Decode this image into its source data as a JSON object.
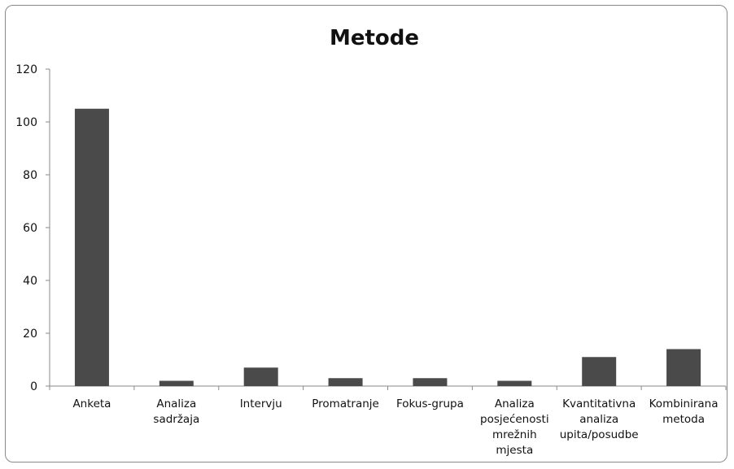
{
  "chart_data": {
    "type": "bar",
    "title": "Metode",
    "xlabel": "",
    "ylabel": "",
    "ylim": [
      0,
      120
    ],
    "yticks": [
      0,
      20,
      40,
      60,
      80,
      100,
      120
    ],
    "grid": false,
    "legend": "none",
    "bar_color": "#4a4a4a",
    "categories": [
      "Anketa",
      "Analiza sadržaja",
      "Intervju",
      "Promatranje",
      "Fokus-grupa",
      "Analiza posjećenosti mrežnih mjesta",
      "Kvantitativna analiza upita/posudbe",
      "Kombinirana metoda"
    ],
    "category_label_lines": [
      [
        "Anketa"
      ],
      [
        "Analiza",
        "sadržaja"
      ],
      [
        "Intervju"
      ],
      [
        "Promatranje"
      ],
      [
        "Fokus-grupa"
      ],
      [
        "Analiza",
        "posjećenosti",
        "mrežnih",
        "mjesta"
      ],
      [
        "Kvantitativna",
        "analiza",
        "upita/posudbe"
      ],
      [
        "Kombinirana",
        "metoda"
      ]
    ],
    "values": [
      105,
      2,
      7,
      3,
      3,
      2,
      11,
      14
    ]
  }
}
